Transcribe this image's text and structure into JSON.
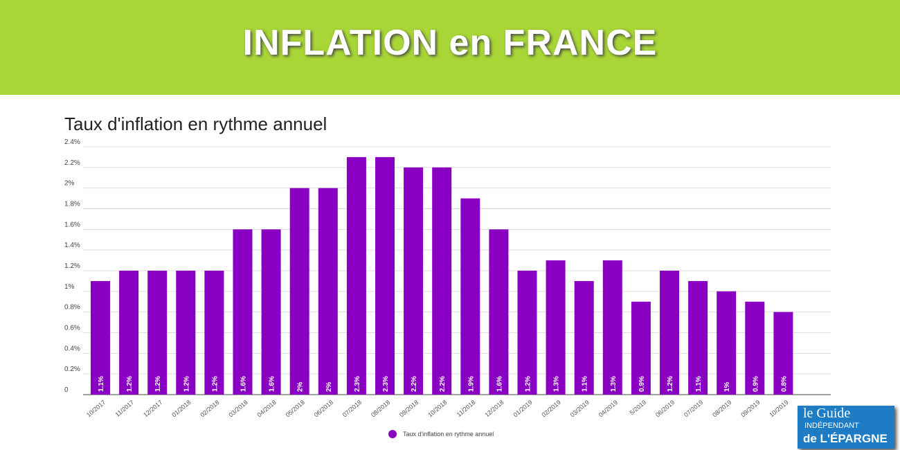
{
  "header": {
    "title": "INFLATION en FRANCE"
  },
  "logo": {
    "text": "le Guide INDÉPENDANT de L'ÉPARGNE"
  },
  "chart_data": {
    "type": "bar",
    "title": "Taux d'inflation en rythme annuel",
    "categories": [
      "10/2017",
      "11/2017",
      "12/2017",
      "01/2018",
      "02/2018",
      "03/2018",
      "04/2018",
      "05/2018",
      "06/2018",
      "07/2018",
      "08/2018",
      "09/2018",
      "10/2018",
      "11/2018",
      "12/2018",
      "01/2019",
      "02/2019",
      "03/2019",
      "04/2019",
      "5/2019",
      "06/2019",
      "07/2019",
      "08/2019",
      "09/2019",
      "10/2019"
    ],
    "series": [
      {
        "name": "Taux d'inflation en rythme annuel",
        "values": [
          1.1,
          1.2,
          1.2,
          1.2,
          1.2,
          1.6,
          1.6,
          2,
          2,
          2.3,
          2.3,
          2.2,
          2.2,
          1.9,
          1.6,
          1.2,
          1.3,
          1.1,
          1.3,
          0.9,
          1.2,
          1.1,
          1,
          0.9,
          0.8
        ],
        "labels": [
          "1.1%",
          "1.2%",
          "1.2%",
          "1.2%",
          "1.2%",
          "1.6%",
          "1.6%",
          "2%",
          "2%",
          "2.3%",
          "2.3%",
          "2.2%",
          "2.2%",
          "1.9%",
          "1.6%",
          "1.2%",
          "1.3%",
          "1.1%",
          "1.3%",
          "0.9%",
          "1.2%",
          "1.1%",
          "1%",
          "0.9%",
          "0.8%"
        ]
      }
    ],
    "yticks": [
      "0",
      "0.2%",
      "0.4%",
      "0.6%",
      "0.8%",
      "1%",
      "1.2%",
      "1.4%",
      "1.6%",
      "1.8%",
      "2%",
      "2.2%",
      "2.4%"
    ],
    "ylim": [
      0,
      2.4
    ],
    "grid": true,
    "legend": "bottom",
    "color": "#8a00c2"
  }
}
